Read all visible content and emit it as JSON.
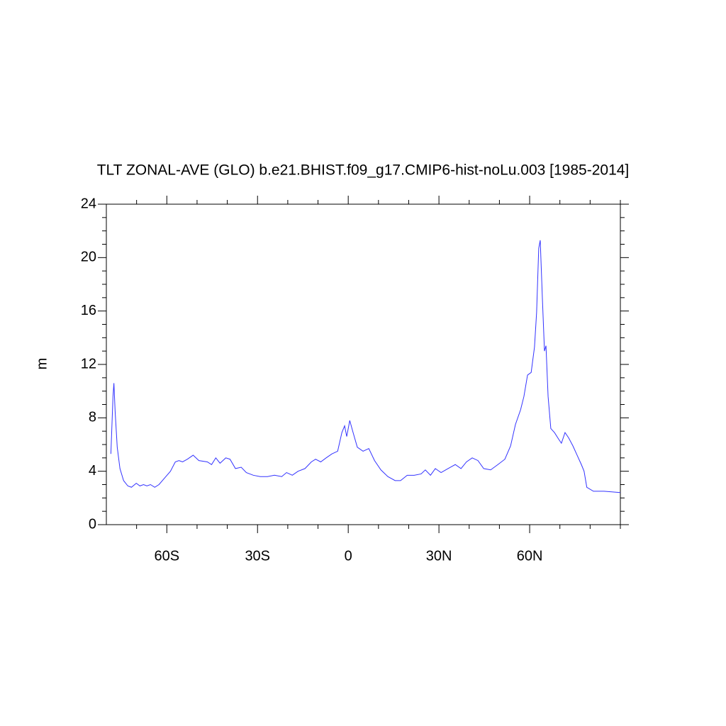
{
  "chart_data": {
    "type": "line",
    "title": "TLT ZONAL-AVE (GLO) b.e21.BHIST.f09_g17.CMIP6-hist-noLu.003 [1985-2014]",
    "y_label": "m",
    "xlim": [
      -80,
      90
    ],
    "ylim": [
      0,
      24
    ],
    "xticks": [
      {
        "value": -60,
        "label": "60S"
      },
      {
        "value": -30,
        "label": "30S"
      },
      0,
      {
        "value": 30,
        "label": "30N"
      },
      {
        "value": 60,
        "label": "60N"
      }
    ],
    "yticks": [
      0,
      4,
      8,
      12,
      16,
      20,
      24
    ],
    "xminor_ticks": [
      -70,
      -50,
      -40,
      -20,
      -10,
      10,
      20,
      40,
      50,
      70,
      80,
      90
    ],
    "yminor_ticks": [
      1,
      2,
      3,
      5,
      6,
      7,
      9,
      10,
      11,
      13,
      14,
      15,
      17,
      18,
      19,
      21,
      22,
      23
    ],
    "series": [
      {
        "name": "TLT",
        "color": "#3333ff",
        "x": [
          -78.5,
          -77.8,
          -77.5,
          -77.1,
          -76.4,
          -75.5,
          -74.3,
          -72.9,
          -71.7,
          -70.1,
          -68.9,
          -67.7,
          -66.6,
          -65.4,
          -64.0,
          -62.6,
          -60.7,
          -58.8,
          -57.2,
          -56.0,
          -54.8,
          -53.2,
          -51.3,
          -49.4,
          -46.6,
          -45.2,
          -43.8,
          -42.4,
          -40.5,
          -39.1,
          -37.3,
          -35.4,
          -33.7,
          -31.4,
          -29.1,
          -26.7,
          -24.4,
          -22.0,
          -20.4,
          -18.5,
          -16.6,
          -14.3,
          -12.2,
          -10.8,
          -9.1,
          -7.3,
          -5.4,
          -3.5,
          -2.1,
          -1.2,
          -0.5,
          0.5,
          1.6,
          3.0,
          4.9,
          6.8,
          8.7,
          10.8,
          13.1,
          15.5,
          17.3,
          19.5,
          21.8,
          24.1,
          25.5,
          27.2,
          28.8,
          30.7,
          33.0,
          35.4,
          37.3,
          39.1,
          41.0,
          42.9,
          44.8,
          47.1,
          49.5,
          51.8,
          53.7,
          55.3,
          57.0,
          58.1,
          59.3,
          60.5,
          61.6,
          62.3,
          63.0,
          63.5,
          64.2,
          64.9,
          65.4,
          66.1,
          67.0,
          68.2,
          69.6,
          70.5,
          71.7,
          72.9,
          74.3,
          75.7,
          77.1,
          78.0,
          78.9,
          81.1,
          84.6,
          90.0
        ],
        "values": [
          5.3,
          9.6,
          10.6,
          8.5,
          5.8,
          4.2,
          3.3,
          2.9,
          2.8,
          3.1,
          2.9,
          3.0,
          2.9,
          3.0,
          2.8,
          3.0,
          3.5,
          4.0,
          4.7,
          4.8,
          4.7,
          4.9,
          5.2,
          4.8,
          4.7,
          4.5,
          5.0,
          4.6,
          5.0,
          4.9,
          4.2,
          4.3,
          3.9,
          3.7,
          3.6,
          3.6,
          3.7,
          3.6,
          3.9,
          3.7,
          4.0,
          4.2,
          4.7,
          4.9,
          4.7,
          5.0,
          5.3,
          5.5,
          6.9,
          7.4,
          6.6,
          7.8,
          6.9,
          5.8,
          5.5,
          5.7,
          4.8,
          4.1,
          3.6,
          3.3,
          3.3,
          3.7,
          3.7,
          3.8,
          4.1,
          3.7,
          4.2,
          3.9,
          4.2,
          4.5,
          4.2,
          4.7,
          5.0,
          4.8,
          4.2,
          4.1,
          4.5,
          4.9,
          5.9,
          7.5,
          8.6,
          9.6,
          11.2,
          11.4,
          13.3,
          15.9,
          20.7,
          21.3,
          17.0,
          13.0,
          13.4,
          9.6,
          7.2,
          6.9,
          6.4,
          6.1,
          6.9,
          6.5,
          5.9,
          5.2,
          4.5,
          4.0,
          2.8,
          2.5,
          2.5,
          2.4
        ]
      }
    ]
  }
}
